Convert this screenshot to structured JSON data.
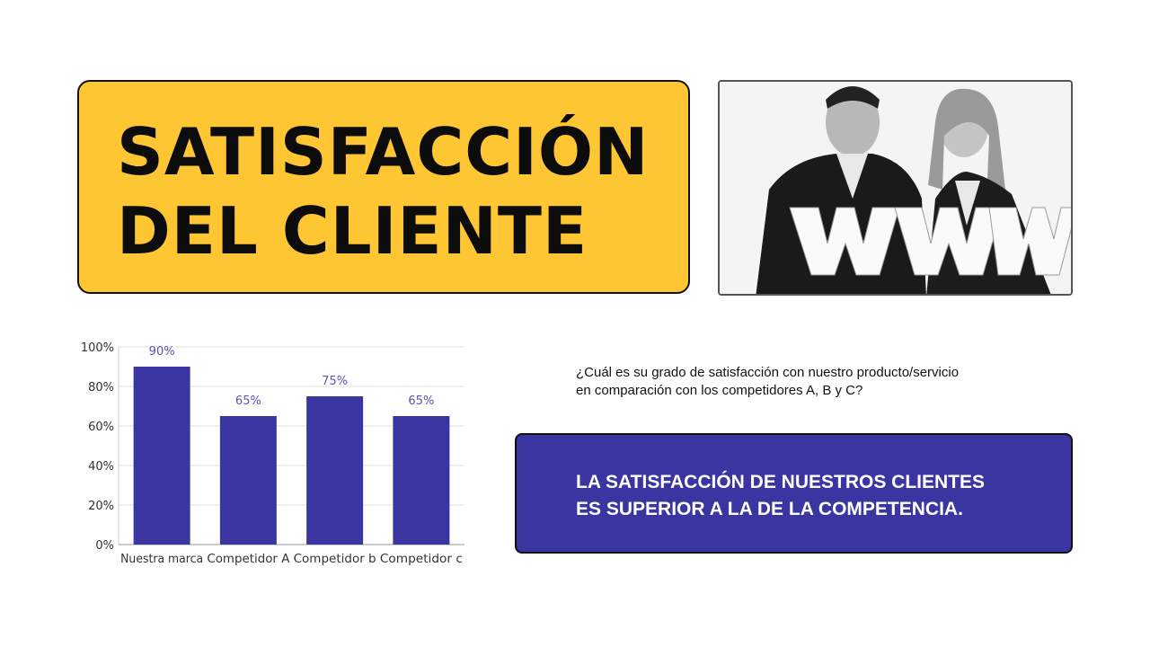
{
  "title": {
    "line1": "SATISFACCIÓN",
    "line2": "DEL CLIENTE"
  },
  "photo": {
    "description_icon": "people-holding-www-letters-photo"
  },
  "question": {
    "line1": "¿Cuál es su grado de satisfacción con nuestro producto/servicio",
    "line2": "en comparación con los competidores A, B y C?"
  },
  "conclusion": {
    "line1": "LA SATISFACCIÓN DE NUESTROS CLIENTES",
    "line2": "ES SUPERIOR A LA DE LA COMPETENCIA."
  },
  "colors": {
    "title_bg": "#fdc632",
    "bar": "#3a35a0",
    "label": "#5a54b0",
    "conclusion_bg": "#3a35a0"
  },
  "chart_data": {
    "type": "bar",
    "categories": [
      "Nuestra marca",
      "Competidor A",
      "Competidor b",
      "Competidor c"
    ],
    "values": [
      90,
      65,
      75,
      65
    ],
    "data_labels": [
      "90%",
      "65%",
      "75%",
      "65%"
    ],
    "ylim": [
      0,
      100
    ],
    "yticks": [
      0,
      20,
      40,
      60,
      80,
      100
    ],
    "ytick_labels": [
      "0%",
      "20%",
      "40%",
      "60%",
      "80%",
      "100%"
    ],
    "grid": true,
    "legend": "none"
  }
}
